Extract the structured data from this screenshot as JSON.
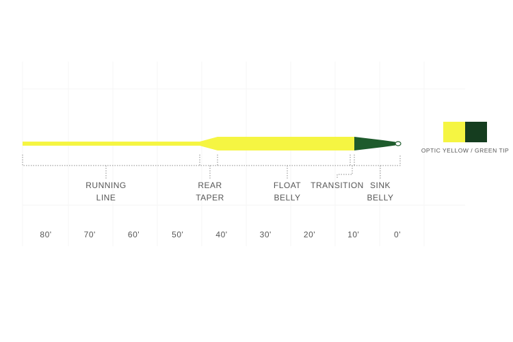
{
  "sections": [
    {
      "label": [
        "RUNNING",
        "LINE"
      ]
    },
    {
      "label": [
        "REAR",
        "TAPER"
      ]
    },
    {
      "label": [
        "FLOAT",
        "BELLY"
      ]
    },
    {
      "label": [
        "TRANSITION"
      ]
    },
    {
      "label": [
        "SINK",
        "BELLY"
      ]
    }
  ],
  "scale": [
    "80'",
    "70'",
    "60'",
    "50'",
    "40'",
    "30'",
    "20'",
    "10'",
    "0'"
  ],
  "swatch": {
    "label": "OPTIC YELLOW / GREEN TIP"
  }
}
